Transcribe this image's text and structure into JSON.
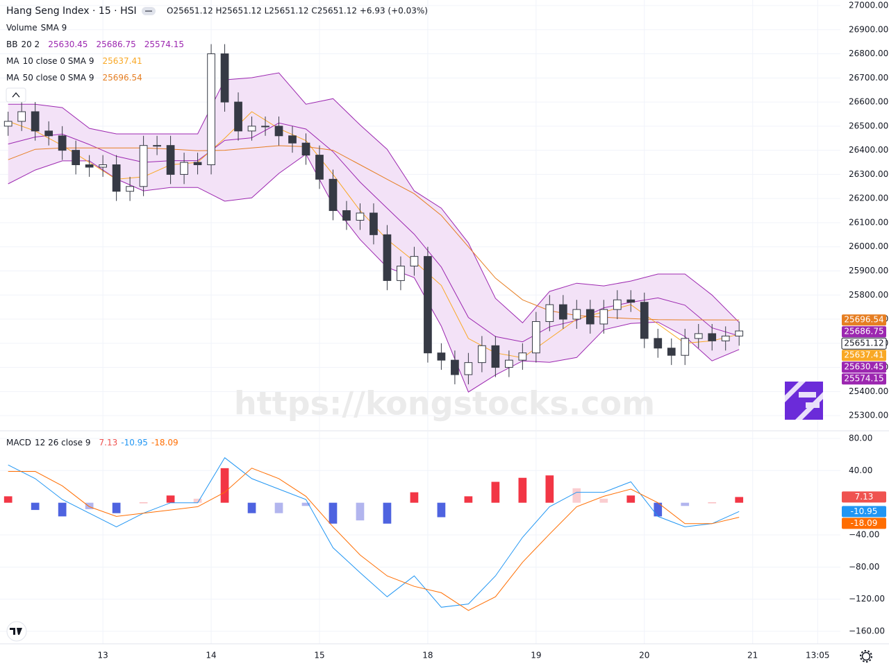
{
  "header": {
    "title": "Hang Seng Index · 15 · HSI",
    "ohlc": "O25651.12 H25651.12 L25651.12 C25651.12 +6.93 (+0.03%)"
  },
  "watermark": "https://kongstocks.com",
  "chart_data": [
    {
      "type": "candlestick",
      "x": [
        0.125,
        0.25,
        0.375,
        0.5,
        0.625,
        0.75,
        0.875,
        1,
        1.125,
        1.25,
        1.375,
        1.5,
        1.625,
        1.75,
        1.875,
        2,
        2.125,
        2.25,
        2.375,
        2.5,
        2.625,
        2.75,
        2.875,
        3,
        3.125,
        3.25,
        3.375,
        3.5,
        3.625,
        3.75,
        3.875,
        4,
        4.125,
        4.25,
        4.375,
        4.5,
        4.625,
        4.75,
        4.875,
        5,
        5.125,
        5.25,
        5.375,
        5.5,
        5.625,
        5.75,
        5.875,
        6,
        6.125,
        6.25,
        6.375,
        6.5,
        6.625,
        6.75,
        6.875
      ],
      "open": [
        26500,
        26520,
        26560,
        26480,
        26460,
        26400,
        26340,
        26330,
        26340,
        26230,
        26250,
        26420,
        26420,
        26300,
        26350,
        26340,
        26800,
        26600,
        26480,
        26500,
        26500,
        26460,
        26430,
        26380,
        26280,
        26150,
        26110,
        26140,
        26050,
        25860,
        25920,
        25960,
        25560,
        25530,
        25470,
        25520,
        25590,
        25500,
        25530,
        25560,
        25690,
        25760,
        25700,
        25740,
        25680,
        25740,
        25780,
        25770,
        25620,
        25580,
        25550,
        25620,
        25640,
        25610,
        25630
      ],
      "high": [
        26560,
        26600,
        26600,
        26520,
        26500,
        26440,
        26380,
        26380,
        26380,
        26290,
        26460,
        26460,
        26460,
        26390,
        26390,
        26840,
        26840,
        26640,
        26540,
        26540,
        26540,
        26500,
        26470,
        26420,
        26320,
        26190,
        26180,
        26180,
        26090,
        25960,
        26000,
        26000,
        25600,
        25570,
        25560,
        25630,
        25630,
        25570,
        25600,
        25730,
        25800,
        25800,
        25780,
        25780,
        25780,
        25820,
        25820,
        25810,
        25660,
        25620,
        25660,
        25680,
        25680,
        25670,
        25690
      ],
      "low": [
        26460,
        26480,
        26440,
        26420,
        26360,
        26300,
        26290,
        26290,
        26190,
        26190,
        26210,
        26380,
        26260,
        26260,
        26300,
        26300,
        26560,
        26440,
        26440,
        26460,
        26420,
        26390,
        26340,
        26240,
        26110,
        26070,
        26070,
        26010,
        25820,
        25820,
        25880,
        25520,
        25490,
        25430,
        25430,
        25480,
        25460,
        25460,
        25490,
        25520,
        25650,
        25660,
        25660,
        25640,
        25640,
        25700,
        25730,
        25580,
        25540,
        25510,
        25510,
        25580,
        25570,
        25570,
        25590
      ],
      "close": [
        26520,
        26560,
        26480,
        26460,
        26400,
        26340,
        26330,
        26340,
        26230,
        26250,
        26420,
        26420,
        26300,
        26350,
        26340,
        26800,
        26600,
        26480,
        26500,
        26500,
        26460,
        26430,
        26380,
        26280,
        26150,
        26110,
        26140,
        26050,
        25860,
        25920,
        25960,
        25560,
        25530,
        25470,
        25520,
        25590,
        25500,
        25530,
        25560,
        25690,
        25760,
        25700,
        25740,
        25680,
        25740,
        25780,
        25770,
        25620,
        25580,
        25550,
        25620,
        25640,
        25610,
        25630,
        25651.12
      ],
      "up_color": "#ffffff",
      "down_color": "#363a45",
      "wick_color": "#363a45",
      "last_color": "#131722",
      "xlim": [
        0.05,
        7.81
      ],
      "ylim": [
        25240,
        27023
      ],
      "yticks": [
        {
          "value": 25300,
          "label": "25300.00"
        },
        {
          "value": 25400,
          "label": "25400.00"
        },
        {
          "value": 25500,
          "label": "25500.00"
        },
        {
          "value": 25600,
          "label": "25600.00"
        },
        {
          "value": 25700,
          "label": "25700.00"
        },
        {
          "value": 25800,
          "label": "25800.00"
        },
        {
          "value": 25900,
          "label": "25900.00"
        },
        {
          "value": 26000,
          "label": "26000.00"
        },
        {
          "value": 26100,
          "label": "26100.00"
        },
        {
          "value": 26200,
          "label": "26200.00"
        },
        {
          "value": 26300,
          "label": "26300.00"
        },
        {
          "value": 26400,
          "label": "26400.00"
        },
        {
          "value": 26500,
          "label": "26500.00"
        },
        {
          "value": 26600,
          "label": "26600.00"
        },
        {
          "value": 26700,
          "label": "26700.00"
        },
        {
          "value": 26800,
          "label": "26800.00"
        },
        {
          "value": 26900,
          "label": "26900.00"
        },
        {
          "value": 27000,
          "label": "27000.00"
        }
      ],
      "grid": true,
      "overlay_x": [
        0.125,
        0.375,
        0.625,
        0.875,
        1.125,
        1.375,
        1.625,
        1.875,
        2.125,
        2.375,
        2.625,
        2.875,
        3.125,
        3.375,
        3.625,
        3.875,
        4.125,
        4.375,
        4.625,
        4.875,
        5.125,
        5.375,
        5.625,
        5.875,
        6.125,
        6.375,
        6.625,
        6.875
      ],
      "indicators": [
        {
          "name": "Volume",
          "params": "SMA 9"
        },
        {
          "name": "BB",
          "params": "20 2",
          "fill": "#f3e2f7",
          "series": [
            {
              "color": "#9c27b0",
              "values": [
                26426,
                26455,
                26467,
                26424,
                26375,
                26350,
                26357,
                26357,
                26441,
                26452,
                26513,
                26488,
                26394,
                26268,
                26160,
                26052,
                25916,
                25707,
                25628,
                25606,
                25668,
                25695,
                25747,
                25770,
                25788,
                25758,
                25664,
                25630.45
              ]
            },
            {
              "color": "#9c27b0",
              "values": [
                26591,
                26591,
                26577,
                26491,
                26468,
                26468,
                26468,
                26468,
                26692,
                26701,
                26721,
                26591,
                26614,
                26505,
                26404,
                26232,
                26160,
                26016,
                25786,
                25685,
                25815,
                25849,
                25838,
                25858,
                25887,
                25887,
                25800,
                25686.75
              ]
            },
            {
              "color": "#9c27b0",
              "values": [
                26261,
                26318,
                26356,
                26356,
                26281,
                26232,
                26246,
                26246,
                26189,
                26203,
                26304,
                26384,
                26174,
                26030,
                25915,
                25872,
                25671,
                25398,
                25469,
                25527,
                25521,
                25541,
                25656,
                25682,
                25688,
                25628,
                25527,
                25574.15
              ]
            }
          ]
        },
        {
          "name": "MA",
          "params": "10 close 0 SMA 9",
          "series": [
            {
              "color": "#f9a825",
              "values": [
                26520,
                26480,
                26420,
                26350,
                26280,
                26290,
                26340,
                26350,
                26450,
                26560,
                26490,
                26440,
                26300,
                26150,
                26030,
                25940,
                25840,
                25620,
                25560,
                25540,
                25620,
                25700,
                25730,
                25760,
                25680,
                25600,
                25610,
                25637.41
              ]
            }
          ]
        },
        {
          "name": "MA",
          "params": "50 close 0 SMA 9",
          "series": [
            {
              "color": "#e67e22",
              "values": [
                26361,
                26404,
                26410,
                26410,
                26410,
                26410,
                26405,
                26398,
                26400,
                26410,
                26419,
                26415,
                26400,
                26340,
                26280,
                26220,
                26130,
                26000,
                25870,
                25780,
                25735,
                25715,
                25708,
                25702,
                25698,
                25697,
                25697,
                25696.54
              ]
            }
          ]
        }
      ]
    },
    {
      "type": "line",
      "name": "MACD",
      "params": "12 26 close 9",
      "x": [
        0.125,
        0.375,
        0.625,
        0.875,
        1.125,
        1.375,
        1.625,
        1.875,
        2.125,
        2.375,
        2.625,
        2.875,
        3.125,
        3.375,
        3.625,
        3.875,
        4.125,
        4.375,
        4.625,
        4.875,
        5.125,
        5.375,
        5.625,
        5.875,
        6.125,
        6.375,
        6.625,
        6.875
      ],
      "series": [
        {
          "type": "bar",
          "color": "#ef5350",
          "hist_colors": [
            "#f23645",
            "#facdd0",
            "#b2b5ee",
            "#4e63e0"
          ],
          "values": [
            8,
            -9,
            -17,
            -8,
            -13,
            0,
            9,
            5,
            43,
            -13,
            -13,
            -4,
            -26,
            -22,
            -26,
            13,
            -18,
            8,
            26,
            31,
            34,
            18,
            5,
            9,
            -17,
            -4,
            0,
            7.13
          ]
        },
        {
          "color": "#2196f3",
          "values": [
            47,
            30,
            4,
            -13,
            -30,
            -13,
            0,
            0,
            56,
            30,
            17,
            4,
            -56,
            -87,
            -117,
            -91,
            -130,
            -126,
            -91,
            -43,
            -5,
            13,
            13,
            26,
            -17,
            -30,
            -26,
            -10.95
          ]
        },
        {
          "color": "#ff6d00",
          "values": [
            39,
            39,
            21,
            -5,
            -17,
            -13,
            -9,
            -5,
            13,
            43,
            30,
            8,
            -30,
            -65,
            -91,
            -104,
            -112,
            -134,
            -117,
            -74,
            -39,
            -5,
            8,
            17,
            0,
            -26,
            -26,
            -18.09
          ]
        }
      ],
      "xlim": [
        0.05,
        7.81
      ],
      "ylim": [
        -175.5,
        88.6
      ],
      "yticks": [
        {
          "value": 80,
          "label": "80.00"
        },
        {
          "value": 40,
          "label": "40.00"
        },
        {
          "value": -40,
          "label": "−40.00"
        },
        {
          "value": -80,
          "label": "−80.00"
        },
        {
          "value": -120,
          "label": "−120.00"
        },
        {
          "value": -160,
          "label": "−160.00"
        }
      ],
      "xticks": [
        {
          "value": 1,
          "label": "13"
        },
        {
          "value": 2,
          "label": "14"
        },
        {
          "value": 3,
          "label": "15"
        },
        {
          "value": 4,
          "label": "18"
        },
        {
          "value": 5,
          "label": "19"
        },
        {
          "value": 6,
          "label": "20"
        },
        {
          "value": 7,
          "label": "21"
        },
        {
          "value": 7.6,
          "label": "13:05"
        }
      ],
      "grid": true
    }
  ]
}
